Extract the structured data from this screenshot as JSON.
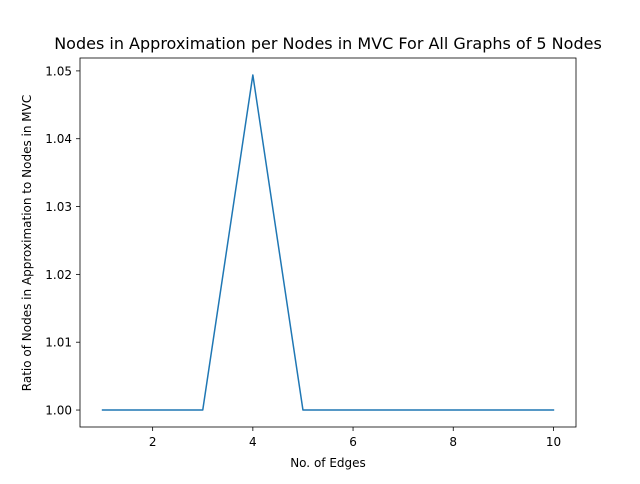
{
  "chart_data": {
    "type": "line",
    "title": "Nodes in Approximation per Nodes in MVC For All Graphs of 5 Nodes",
    "xlabel": "No. of Edges",
    "ylabel": "Ratio of Nodes in Approximation to Nodes in MVC",
    "xlim": [
      0.55,
      10.45
    ],
    "ylim": [
      0.9975,
      1.0519
    ],
    "x_ticks": [
      2,
      4,
      6,
      8,
      10
    ],
    "y_ticks": [
      1.0,
      1.01,
      1.02,
      1.03,
      1.04,
      1.05
    ],
    "y_tick_labels": [
      "1.00",
      "1.01",
      "1.02",
      "1.03",
      "1.04",
      "1.05"
    ],
    "grid": false,
    "series": [
      {
        "color": "#1f77b4",
        "x": [
          1,
          2,
          3,
          4,
          5,
          6,
          7,
          8,
          9,
          10
        ],
        "y": [
          1.0,
          1.0,
          1.0,
          1.0494,
          1.0,
          1.0,
          1.0,
          1.0,
          1.0,
          1.0
        ]
      }
    ]
  }
}
